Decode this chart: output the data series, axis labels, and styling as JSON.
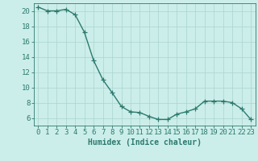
{
  "x": [
    0,
    1,
    2,
    3,
    4,
    5,
    6,
    7,
    8,
    9,
    10,
    11,
    12,
    13,
    14,
    15,
    16,
    17,
    18,
    19,
    20,
    21,
    22,
    23
  ],
  "y": [
    20.5,
    20.0,
    20.0,
    20.2,
    19.5,
    17.2,
    13.5,
    11.0,
    9.3,
    7.5,
    6.8,
    6.7,
    6.2,
    5.8,
    5.8,
    6.5,
    6.8,
    7.2,
    8.2,
    8.2,
    8.2,
    8.0,
    7.2,
    5.8
  ],
  "line_color": "#2d7a6e",
  "marker": "+",
  "marker_size": 4,
  "bg_color": "#cceeea",
  "grid_color": "#aad4ce",
  "xlabel": "Humidex (Indice chaleur)",
  "xlim": [
    -0.5,
    23.5
  ],
  "ylim": [
    5.0,
    21.0
  ],
  "yticks": [
    6,
    8,
    10,
    12,
    14,
    16,
    18,
    20
  ],
  "xticks": [
    0,
    1,
    2,
    3,
    4,
    5,
    6,
    7,
    8,
    9,
    10,
    11,
    12,
    13,
    14,
    15,
    16,
    17,
    18,
    19,
    20,
    21,
    22,
    23
  ],
  "xlabel_fontsize": 7,
  "tick_fontsize": 6.5,
  "line_width": 1.0
}
